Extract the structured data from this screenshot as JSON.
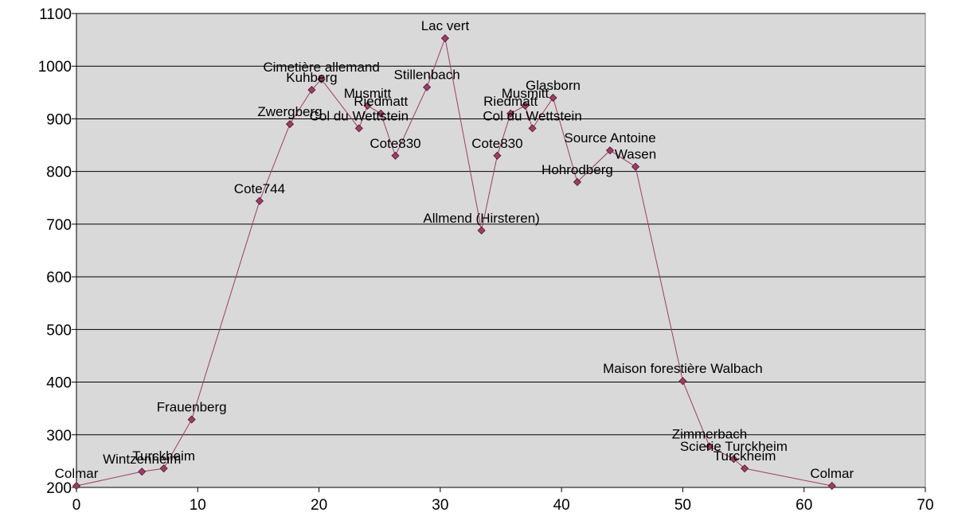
{
  "chart_data": {
    "type": "line",
    "title": "",
    "xlabel": "",
    "ylabel": "",
    "xlim": [
      0,
      70
    ],
    "ylim": [
      200,
      1100
    ],
    "xticks": [
      0,
      10,
      20,
      30,
      40,
      50,
      60,
      70
    ],
    "yticks": [
      200,
      300,
      400,
      500,
      600,
      700,
      800,
      900,
      1000,
      1100
    ],
    "grid": "horizontal",
    "legend": "none",
    "colors": {
      "plot_bg": "#d9d9d9",
      "line": "#9e3d64",
      "marker": "#9e3d64",
      "grid": "#000000"
    },
    "series": [
      {
        "points": [
          {
            "x": 0.0,
            "y": 203,
            "label": "Colmar"
          },
          {
            "x": 5.4,
            "y": 230,
            "label": "Wintzenheim"
          },
          {
            "x": 7.2,
            "y": 236,
            "label": "Turckheim"
          },
          {
            "x": 9.5,
            "y": 329,
            "label": "Frauenberg"
          },
          {
            "x": 15.1,
            "y": 744,
            "label": "Cote744"
          },
          {
            "x": 17.6,
            "y": 890,
            "label": "Zwergberg"
          },
          {
            "x": 19.4,
            "y": 955,
            "label": "Kuhberg"
          },
          {
            "x": 20.2,
            "y": 975,
            "label": "Cimetière allemand"
          },
          {
            "x": 23.3,
            "y": 882,
            "label": "Col du Wettstein"
          },
          {
            "x": 24.0,
            "y": 925,
            "label": "Musmitt"
          },
          {
            "x": 25.1,
            "y": 910,
            "label": "Riedmatt"
          },
          {
            "x": 26.3,
            "y": 830,
            "label": "Cote830"
          },
          {
            "x": 28.9,
            "y": 960,
            "label": "Stillenbach"
          },
          {
            "x": 30.4,
            "y": 1053,
            "label": "Lac vert"
          },
          {
            "x": 33.4,
            "y": 688,
            "label": "Allmend (Hirsteren)"
          },
          {
            "x": 34.7,
            "y": 830,
            "label": "Cote830"
          },
          {
            "x": 35.8,
            "y": 910,
            "label": "Riedmatt"
          },
          {
            "x": 37.0,
            "y": 925,
            "label": "Musmitt"
          },
          {
            "x": 37.6,
            "y": 882,
            "label": "Col du Wettstein"
          },
          {
            "x": 39.3,
            "y": 940,
            "label": "Glasborn"
          },
          {
            "x": 41.3,
            "y": 780,
            "label": "Hohrodberg"
          },
          {
            "x": 44.0,
            "y": 840,
            "label": "Source Antoine"
          },
          {
            "x": 46.1,
            "y": 809,
            "label": "Wasen"
          },
          {
            "x": 50.0,
            "y": 402,
            "label": "Maison forestière Walbach"
          },
          {
            "x": 52.2,
            "y": 278,
            "label": "Zimmerbach"
          },
          {
            "x": 54.2,
            "y": 254,
            "label": "Scierie Turckheim"
          },
          {
            "x": 55.1,
            "y": 236,
            "label": "Turckheim"
          },
          {
            "x": 62.3,
            "y": 203,
            "label": "Colmar"
          }
        ]
      }
    ]
  }
}
